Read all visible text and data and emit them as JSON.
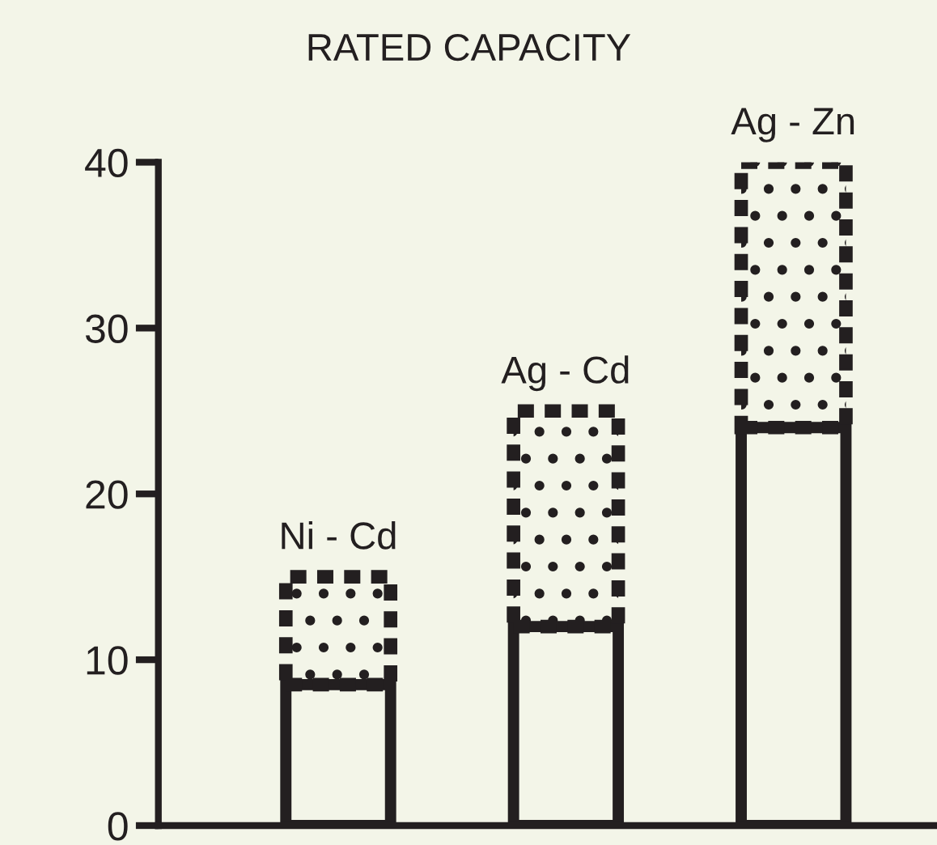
{
  "chart_data": {
    "type": "bar",
    "title": "RATED CAPACITY",
    "categories": [
      "Ni - Cd",
      "Ag - Cd",
      "Ag - Zn"
    ],
    "stacked": true,
    "series": [
      {
        "color": "#231f20",
        "values": [
          8.5,
          12,
          24
        ]
      },
      {
        "color": "#231f20",
        "values": [
          6.5,
          13,
          16
        ]
      }
    ],
    "ylim": [
      0,
      40
    ],
    "yticks": [
      0,
      10,
      20,
      30,
      40
    ],
    "grid": false,
    "legend": false,
    "tick_labels": "y"
  }
}
